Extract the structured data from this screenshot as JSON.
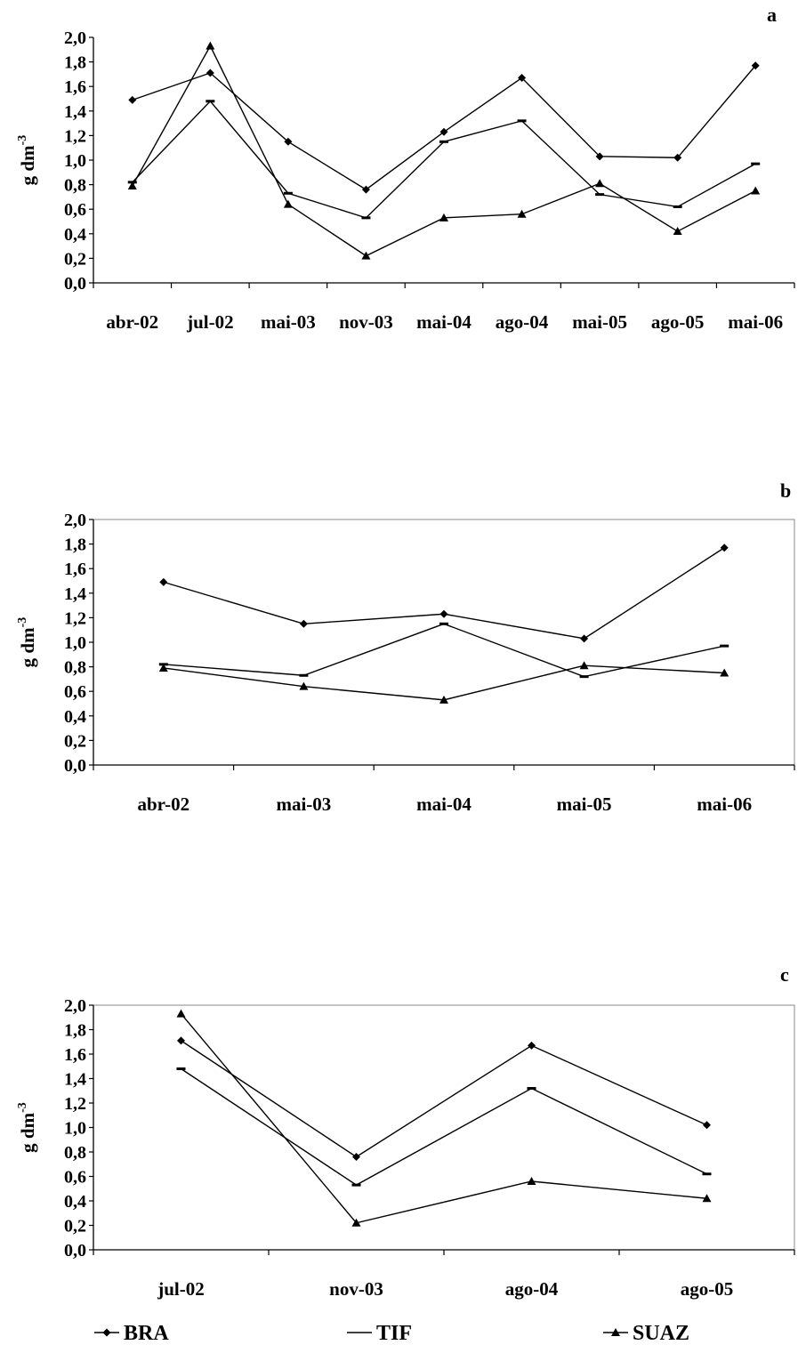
{
  "chart_data": [
    {
      "type": "line",
      "panel_label": "a",
      "ylabel": "g dm",
      "ylabel_sup": "-3",
      "categories": [
        "abr-02",
        "jul-02",
        "mai-03",
        "nov-03",
        "mai-04",
        "ago-04",
        "mai-05",
        "ago-05",
        "mai-06"
      ],
      "ylim": [
        0,
        2
      ],
      "yticks": [
        "0,0",
        "0,2",
        "0,4",
        "0,6",
        "0,8",
        "1,0",
        "1,2",
        "1,4",
        "1,6",
        "1,8",
        "2,0"
      ],
      "plot_border": false,
      "series": [
        {
          "name": "BRA",
          "marker": "diamond",
          "values": [
            1.49,
            1.71,
            1.15,
            0.76,
            1.23,
            1.67,
            1.03,
            1.02,
            1.77
          ]
        },
        {
          "name": "TIF",
          "marker": "dash",
          "values": [
            0.82,
            1.48,
            0.73,
            0.53,
            1.15,
            1.32,
            0.72,
            0.62,
            0.97
          ]
        },
        {
          "name": "SUAZ",
          "marker": "triangle",
          "values": [
            0.79,
            1.93,
            0.64,
            0.22,
            0.53,
            0.56,
            0.81,
            0.42,
            0.75
          ]
        }
      ]
    },
    {
      "type": "line",
      "panel_label": "b",
      "ylabel": "g dm",
      "ylabel_sup": "-3",
      "categories": [
        "abr-02",
        "mai-03",
        "mai-04",
        "mai-05",
        "mai-06"
      ],
      "ylim": [
        0,
        2
      ],
      "yticks": [
        "0,0",
        "0,2",
        "0,4",
        "0,6",
        "0,8",
        "1,0",
        "1,2",
        "1,4",
        "1,6",
        "1,8",
        "2,0"
      ],
      "plot_border": true,
      "series": [
        {
          "name": "BRA",
          "marker": "diamond",
          "values": [
            1.49,
            1.15,
            1.23,
            1.03,
            1.77
          ]
        },
        {
          "name": "TIF",
          "marker": "dash",
          "values": [
            0.82,
            0.73,
            1.15,
            0.72,
            0.97
          ]
        },
        {
          "name": "SUAZ",
          "marker": "triangle",
          "values": [
            0.79,
            0.64,
            0.53,
            0.81,
            0.75
          ]
        }
      ]
    },
    {
      "type": "line",
      "panel_label": "c",
      "ylabel": "g dm",
      "ylabel_sup": "-3",
      "categories": [
        "jul-02",
        "nov-03",
        "ago-04",
        "ago-05"
      ],
      "ylim": [
        0,
        2
      ],
      "yticks": [
        "0,0",
        "0,2",
        "0,4",
        "0,6",
        "0,8",
        "1,0",
        "1,2",
        "1,4",
        "1,6",
        "1,8",
        "2,0"
      ],
      "plot_border": true,
      "series": [
        {
          "name": "BRA",
          "marker": "diamond",
          "values": [
            1.71,
            0.76,
            1.67,
            1.02
          ]
        },
        {
          "name": "TIF",
          "marker": "dash",
          "values": [
            1.48,
            0.53,
            1.32,
            0.62
          ]
        },
        {
          "name": "SUAZ",
          "marker": "triangle",
          "values": [
            1.93,
            0.22,
            0.56,
            0.42
          ]
        }
      ]
    }
  ],
  "legend": {
    "placement": "bottom",
    "items": [
      {
        "label": "BRA",
        "marker": "diamond"
      },
      {
        "label": "TIF",
        "marker": "dash"
      },
      {
        "label": "SUAZ",
        "marker": "triangle"
      }
    ]
  }
}
